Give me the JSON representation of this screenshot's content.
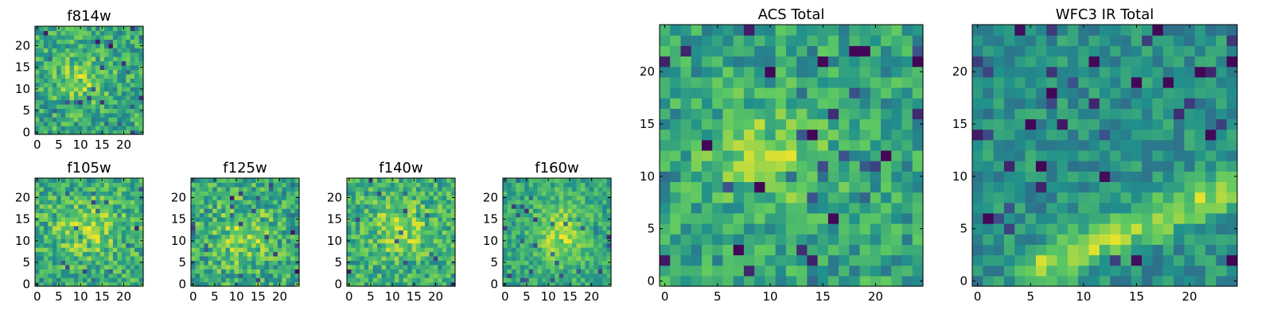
{
  "colormap": {
    "name": "viridis",
    "stops": [
      "#440154",
      "#3b528b",
      "#21918c",
      "#5ec962",
      "#fde725"
    ]
  },
  "chart_data": [
    {
      "name": "f814w",
      "type": "heatmap",
      "title": "f814w",
      "grid": [
        25,
        25
      ],
      "xlim": [
        -0.5,
        24.5
      ],
      "ylim": [
        -0.5,
        24.5
      ],
      "xticks": [
        0,
        5,
        10,
        15,
        20
      ],
      "yticks": [
        0,
        5,
        10,
        15,
        20
      ],
      "features": [
        {
          "kind": "blob",
          "x": 10,
          "y": 12,
          "sx": 4.5,
          "sy": 4,
          "amp": 0.22
        }
      ],
      "noise": 0.2,
      "base": 0.6,
      "seed": 11,
      "dark_pixels": []
    },
    {
      "name": "f105w",
      "type": "heatmap",
      "title": "f105w",
      "grid": [
        25,
        25
      ],
      "xlim": [
        -0.5,
        24.5
      ],
      "ylim": [
        -0.5,
        24.5
      ],
      "xticks": [
        0,
        5,
        10,
        15,
        20
      ],
      "yticks": [
        0,
        5,
        10,
        15,
        20
      ],
      "features": [
        {
          "kind": "blob",
          "x": 12,
          "y": 13,
          "sx": 5.5,
          "sy": 4.5,
          "amp": 0.22
        }
      ],
      "noise": 0.2,
      "base": 0.62,
      "seed": 23,
      "dark_pixels": []
    },
    {
      "name": "f125w",
      "type": "heatmap",
      "title": "f125w",
      "grid": [
        25,
        25
      ],
      "xlim": [
        -0.5,
        24.5
      ],
      "ylim": [
        -0.5,
        24.5
      ],
      "xticks": [
        0,
        5,
        10,
        15,
        20
      ],
      "yticks": [
        0,
        5,
        10,
        15,
        20
      ],
      "features": [
        {
          "kind": "blob",
          "x": 12,
          "y": 11,
          "sx": 5,
          "sy": 5,
          "amp": 0.2
        }
      ],
      "noise": 0.22,
      "base": 0.6,
      "seed": 37,
      "dark_pixels": []
    },
    {
      "name": "f140w",
      "type": "heatmap",
      "title": "f140w",
      "grid": [
        25,
        25
      ],
      "xlim": [
        -0.5,
        24.5
      ],
      "ylim": [
        -0.5,
        24.5
      ],
      "xticks": [
        0,
        5,
        10,
        15,
        20
      ],
      "yticks": [
        0,
        5,
        10,
        15,
        20
      ],
      "features": [
        {
          "kind": "blob",
          "x": 12,
          "y": 13,
          "sx": 5,
          "sy": 5,
          "amp": 0.2
        }
      ],
      "noise": 0.2,
      "base": 0.62,
      "seed": 41,
      "dark_pixels": []
    },
    {
      "name": "f160w",
      "type": "heatmap",
      "title": "f160w",
      "grid": [
        25,
        25
      ],
      "xlim": [
        -0.5,
        24.5
      ],
      "ylim": [
        -0.5,
        24.5
      ],
      "xticks": [
        0,
        5,
        10,
        15,
        20
      ],
      "yticks": [
        0,
        5,
        10,
        15,
        20
      ],
      "features": [
        {
          "kind": "blob",
          "x": 13,
          "y": 12,
          "sx": 4,
          "sy": 5,
          "amp": 0.28
        }
      ],
      "noise": 0.15,
      "base": 0.6,
      "seed": 53,
      "dark_pixels": []
    },
    {
      "name": "acs-total",
      "type": "heatmap",
      "title": "ACS Total",
      "grid": [
        25,
        25
      ],
      "xlim": [
        -0.5,
        24.5
      ],
      "ylim": [
        -0.5,
        24.5
      ],
      "xticks": [
        0,
        5,
        10,
        15,
        20
      ],
      "yticks": [
        0,
        5,
        10,
        15,
        20
      ],
      "features": [
        {
          "kind": "blob",
          "x": 10,
          "y": 12,
          "sx": 4,
          "sy": 3.5,
          "amp": 0.24
        }
      ],
      "noise": 0.18,
      "base": 0.58,
      "seed": 67,
      "dark_pixels": [
        [
          18,
          22
        ],
        [
          19,
          22
        ],
        [
          9,
          9
        ],
        [
          14,
          14
        ],
        [
          4,
          13
        ],
        [
          7,
          3
        ],
        [
          15,
          21
        ],
        [
          21,
          12
        ],
        [
          10,
          20
        ],
        [
          16,
          6
        ],
        [
          24,
          21
        ]
      ]
    },
    {
      "name": "wfc3-ir-total",
      "type": "heatmap",
      "title": "WFC3 IR Total",
      "grid": [
        25,
        25
      ],
      "xlim": [
        -0.5,
        24.5
      ],
      "ylim": [
        -0.5,
        24.5
      ],
      "xticks": [
        0,
        5,
        10,
        15,
        20
      ],
      "yticks": [
        0,
        5,
        10,
        15,
        20
      ],
      "features": [
        {
          "kind": "ridge",
          "x0": 5,
          "y0": 1,
          "x1": 24,
          "y1": 9,
          "width": 1.3,
          "amp": 0.34
        }
      ],
      "noise": 0.14,
      "base": 0.5,
      "seed": 79,
      "dark_pixels": [
        [
          17,
          24
        ],
        [
          7,
          18
        ],
        [
          6,
          11
        ],
        [
          1,
          6
        ],
        [
          5,
          15
        ],
        [
          11,
          21
        ],
        [
          15,
          19
        ],
        [
          18,
          19
        ],
        [
          21,
          20
        ],
        [
          24,
          2
        ],
        [
          22,
          14
        ],
        [
          24,
          21
        ]
      ]
    }
  ]
}
